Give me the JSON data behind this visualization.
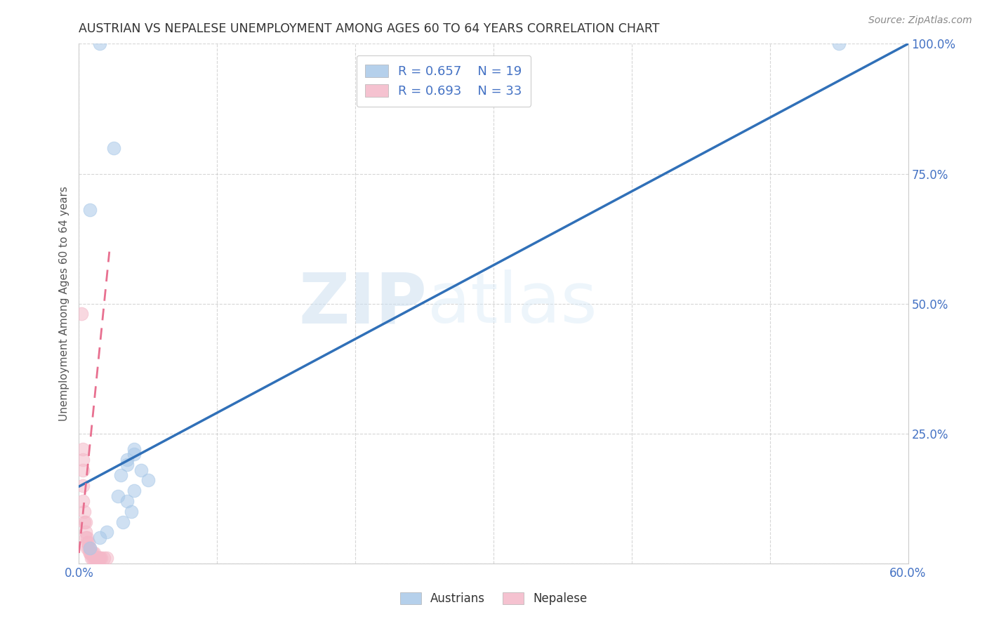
{
  "title": "AUSTRIAN VS NEPALESE UNEMPLOYMENT AMONG AGES 60 TO 64 YEARS CORRELATION CHART",
  "source": "Source: ZipAtlas.com",
  "ylabel": "Unemployment Among Ages 60 to 64 years",
  "xlim": [
    0.0,
    0.6
  ],
  "ylim": [
    0.0,
    1.0
  ],
  "background_color": "#ffffff",
  "watermark_zip": "ZIP",
  "watermark_atlas": "atlas",
  "legend_R_blue": "R = 0.657",
  "legend_N_blue": "N = 19",
  "legend_R_pink": "R = 0.693",
  "legend_N_pink": "N = 33",
  "blue_scatter_color": "#a8c8e8",
  "pink_scatter_color": "#f4b8c8",
  "trendline_blue_color": "#3070b8",
  "trendline_pink_color": "#e87090",
  "blue_trendline_x": [
    0.0,
    0.6
  ],
  "blue_trendline_y": [
    0.148,
    1.0
  ],
  "pink_trendline_x": [
    0.0,
    0.022
  ],
  "pink_trendline_y": [
    0.02,
    0.6
  ],
  "austrians_x": [
    0.015,
    0.008,
    0.025,
    0.035,
    0.04,
    0.035,
    0.04,
    0.045,
    0.03,
    0.05,
    0.04,
    0.028,
    0.035,
    0.038,
    0.032,
    0.02,
    0.015,
    0.008,
    0.55
  ],
  "austrians_y": [
    1.0,
    0.68,
    0.8,
    0.2,
    0.22,
    0.19,
    0.21,
    0.18,
    0.17,
    0.16,
    0.14,
    0.13,
    0.12,
    0.1,
    0.08,
    0.06,
    0.05,
    0.03,
    1.0
  ],
  "nepalese_x": [
    0.002,
    0.003,
    0.003,
    0.003,
    0.003,
    0.003,
    0.004,
    0.004,
    0.005,
    0.005,
    0.005,
    0.006,
    0.006,
    0.006,
    0.007,
    0.007,
    0.008,
    0.008,
    0.008,
    0.009,
    0.009,
    0.01,
    0.01,
    0.011,
    0.011,
    0.012,
    0.013,
    0.014,
    0.015,
    0.015,
    0.016,
    0.018,
    0.02
  ],
  "nepalese_y": [
    0.48,
    0.22,
    0.2,
    0.18,
    0.15,
    0.12,
    0.1,
    0.08,
    0.08,
    0.06,
    0.05,
    0.05,
    0.04,
    0.03,
    0.04,
    0.03,
    0.03,
    0.02,
    0.02,
    0.02,
    0.01,
    0.02,
    0.01,
    0.02,
    0.01,
    0.01,
    0.01,
    0.01,
    0.01,
    0.01,
    0.01,
    0.01,
    0.01
  ],
  "dot_size": 180,
  "dot_alpha": 0.55,
  "tick_color": "#4472c4",
  "tick_fontsize": 12,
  "label_color": "#555555"
}
